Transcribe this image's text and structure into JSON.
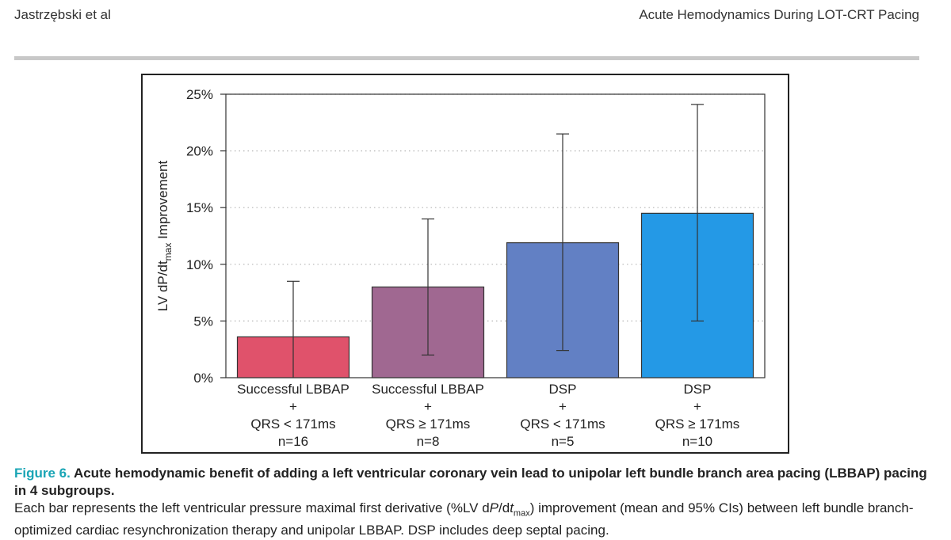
{
  "header": {
    "authors": "Jastrzębski et al",
    "running_title": "Acute Hemodynamics During LOT-CRT Pacing"
  },
  "chart_data": {
    "type": "bar",
    "ylabel_main": "LV dP/dt",
    "ylabel_sub": "max",
    "ylabel_tail": " Improvement",
    "ylim": [
      0,
      25
    ],
    "yticks": [
      0,
      5,
      10,
      15,
      20,
      25
    ],
    "ytick_labels": [
      "0%",
      "5%",
      "10%",
      "15%",
      "20%",
      "25%"
    ],
    "grid": "horizontal-dotted",
    "bars": [
      {
        "lines": [
          "Successful LBBAP",
          "+",
          "QRS < 171ms",
          "n=16"
        ],
        "mean": 3.6,
        "ci": [
          -0.1,
          8.5
        ],
        "color": "#e0526b"
      },
      {
        "lines": [
          "Successful LBBAP",
          "+",
          "QRS ≥ 171ms",
          "n=8"
        ],
        "mean": 8.0,
        "ci": [
          2.0,
          14.0
        ],
        "color": "#a06891"
      },
      {
        "lines": [
          "DSP",
          "+",
          "QRS < 171ms",
          "n=5"
        ],
        "mean": 11.9,
        "ci": [
          2.4,
          21.5
        ],
        "color": "#6280c4"
      },
      {
        "lines": [
          "DSP",
          "+",
          "QRS ≥ 171ms",
          "n=10"
        ],
        "mean": 14.5,
        "ci": [
          5.0,
          24.1
        ],
        "color": "#2499e6"
      }
    ]
  },
  "caption": {
    "label": "Figure 6.",
    "title": " Acute hemodynamic benefit of adding a left ventricular coronary vein lead to unipolar left bundle branch area pacing (LBBAP) pacing in 4 subgroups.",
    "body_1": "Each bar represents the left ventricular pressure maximal first derivative (%LV d",
    "body_P": "P",
    "body_2": "/d",
    "body_t": "t",
    "body_sub": "max",
    "body_3": ") improvement (mean and 95% CIs) between left bundle branch-optimized cardiac resynchronization therapy and unipolar LBBAP. DSP includes deep septal pacing."
  }
}
